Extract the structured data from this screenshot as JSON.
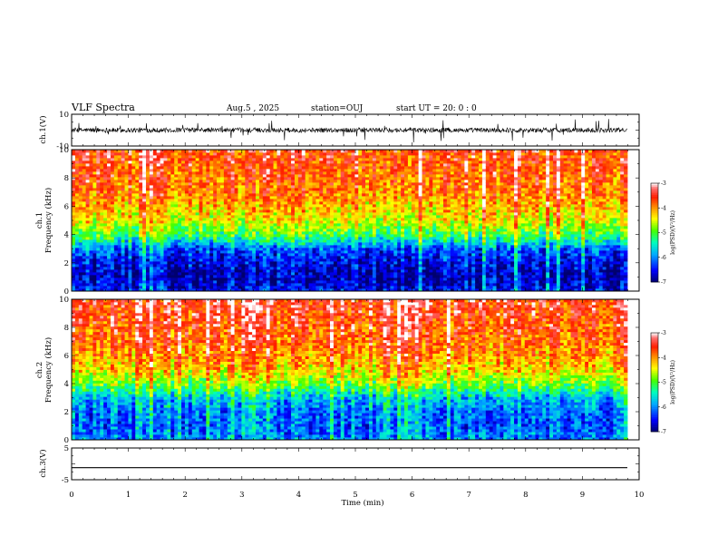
{
  "header": {
    "title": "VLF Spectra",
    "date": "Aug.5 , 2025",
    "station": "station=OUJ",
    "start": "start UT = 20: 0 : 0"
  },
  "chart_data": [
    {
      "type": "line",
      "name": "ch1-waveform",
      "ylabel": "ch.1(V)",
      "ylim": [
        -10,
        10
      ],
      "yticks": [
        {
          "value": 10,
          "label": "10"
        },
        {
          "value": -10,
          "label": "-10"
        }
      ],
      "xlim": [
        0,
        10
      ],
      "description_values": {
        "baseline": 0,
        "typical_amplitude": 1.5,
        "burst_amplitude": 8
      }
    },
    {
      "type": "heatmap",
      "name": "ch1-spectrogram",
      "ylabel": "ch.1",
      "ylabel2": "Frequency (kHz)",
      "ylim": [
        0,
        10
      ],
      "xlim": [
        0,
        10
      ],
      "yticks": [
        0,
        2,
        4,
        6,
        8,
        10
      ],
      "colorbar": {
        "label": "log(PSD)(V²/Hz)",
        "range": [
          -7,
          -3
        ],
        "ticks": [
          -3,
          -4,
          -5,
          -6,
          -7
        ],
        "colors": [
          "#000080",
          "#0000ff",
          "#00b0ff",
          "#00ffa0",
          "#40ff00",
          "#ffff00",
          "#ff8000",
          "#ff0000",
          "#ff6060",
          "#ffffff"
        ]
      },
      "profile": {
        "freq_khz": [
          0,
          1,
          2,
          3,
          3.5,
          4,
          4.5,
          5,
          6,
          7,
          10
        ],
        "log_psd": [
          -6.5,
          -6.8,
          -6.6,
          -6.2,
          -5.6,
          -5.1,
          -4.8,
          -4.5,
          -4.2,
          -3.9,
          -3.6
        ]
      }
    },
    {
      "type": "heatmap",
      "name": "ch2-spectrogram",
      "ylabel": "ch.2",
      "ylabel2": "Frequency (kHz)",
      "ylim": [
        0,
        10
      ],
      "xlim": [
        0,
        10
      ],
      "yticks": [
        0,
        2,
        4,
        6,
        8,
        10
      ],
      "colorbar": {
        "label": "log(PSD)(V²/Hz)",
        "range": [
          -7,
          -3
        ],
        "ticks": [
          -3,
          -4,
          -5,
          -6,
          -7
        ],
        "colors": [
          "#000080",
          "#0000ff",
          "#00b0ff",
          "#00ffa0",
          "#40ff00",
          "#ffff00",
          "#ff8000",
          "#ff0000",
          "#ff6060",
          "#ffffff"
        ]
      },
      "profile": {
        "freq_khz": [
          0,
          1,
          2,
          3,
          3.5,
          4,
          4.5,
          5,
          6,
          7,
          10
        ],
        "log_psd": [
          -6.0,
          -6.2,
          -6.1,
          -5.8,
          -5.3,
          -4.9,
          -4.6,
          -4.3,
          -4.0,
          -3.8,
          -3.5
        ]
      }
    },
    {
      "type": "line",
      "name": "ch3-waveform",
      "ylabel": "ch.3(V)",
      "ylim": [
        -5,
        5
      ],
      "yticks": [
        {
          "value": 5,
          "label": "5"
        },
        {
          "value": -5,
          "label": "-5"
        }
      ],
      "xlim": [
        0,
        10
      ],
      "level": -1.2
    }
  ],
  "x_axis": {
    "label": "Time (min)",
    "ticks": [
      "0",
      "1",
      "2",
      "3",
      "4",
      "5",
      "6",
      "7",
      "8",
      "9",
      "10"
    ]
  }
}
